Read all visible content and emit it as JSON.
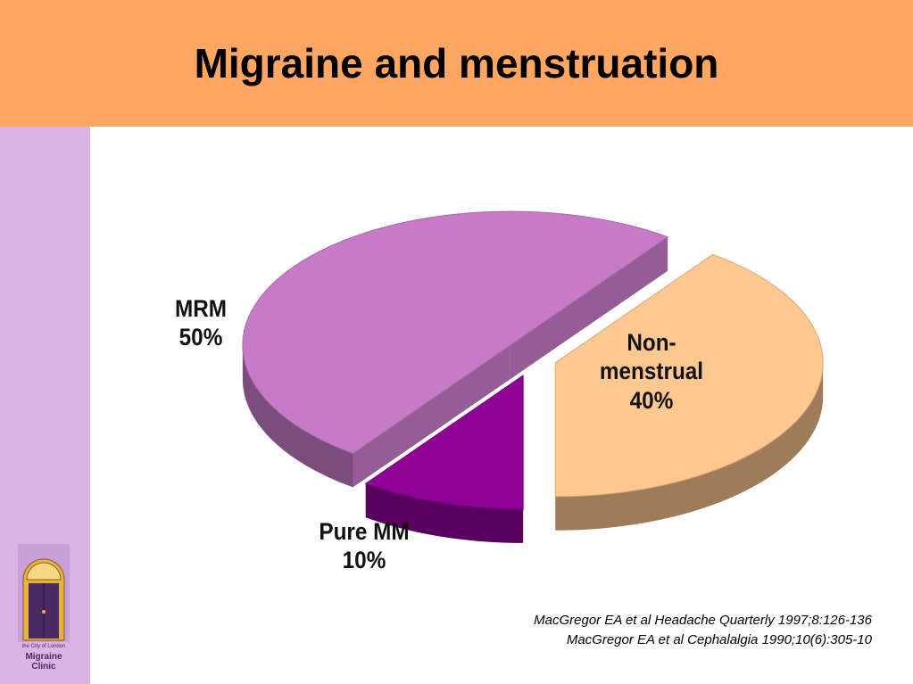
{
  "chart_data": {
    "type": "pie",
    "title": "Migraine and menstruation",
    "categories": [
      "MRM",
      "Non-\nmenstrual",
      "Pure MM"
    ],
    "values": [
      50,
      40,
      10
    ],
    "value_labels": [
      "50%",
      "40%",
      "10%"
    ],
    "colors": [
      "#c77ac8",
      "#ffc890",
      "#8e0096"
    ],
    "sources": [
      "MacGregor EA et al Headache Quarterly 1997;8:126-136",
      "MacGregor EA et al Cephalalgia 1990;10(6):305-10"
    ]
  },
  "logo": {
    "small": "the City of London",
    "name": "Migraine\nClinic"
  }
}
